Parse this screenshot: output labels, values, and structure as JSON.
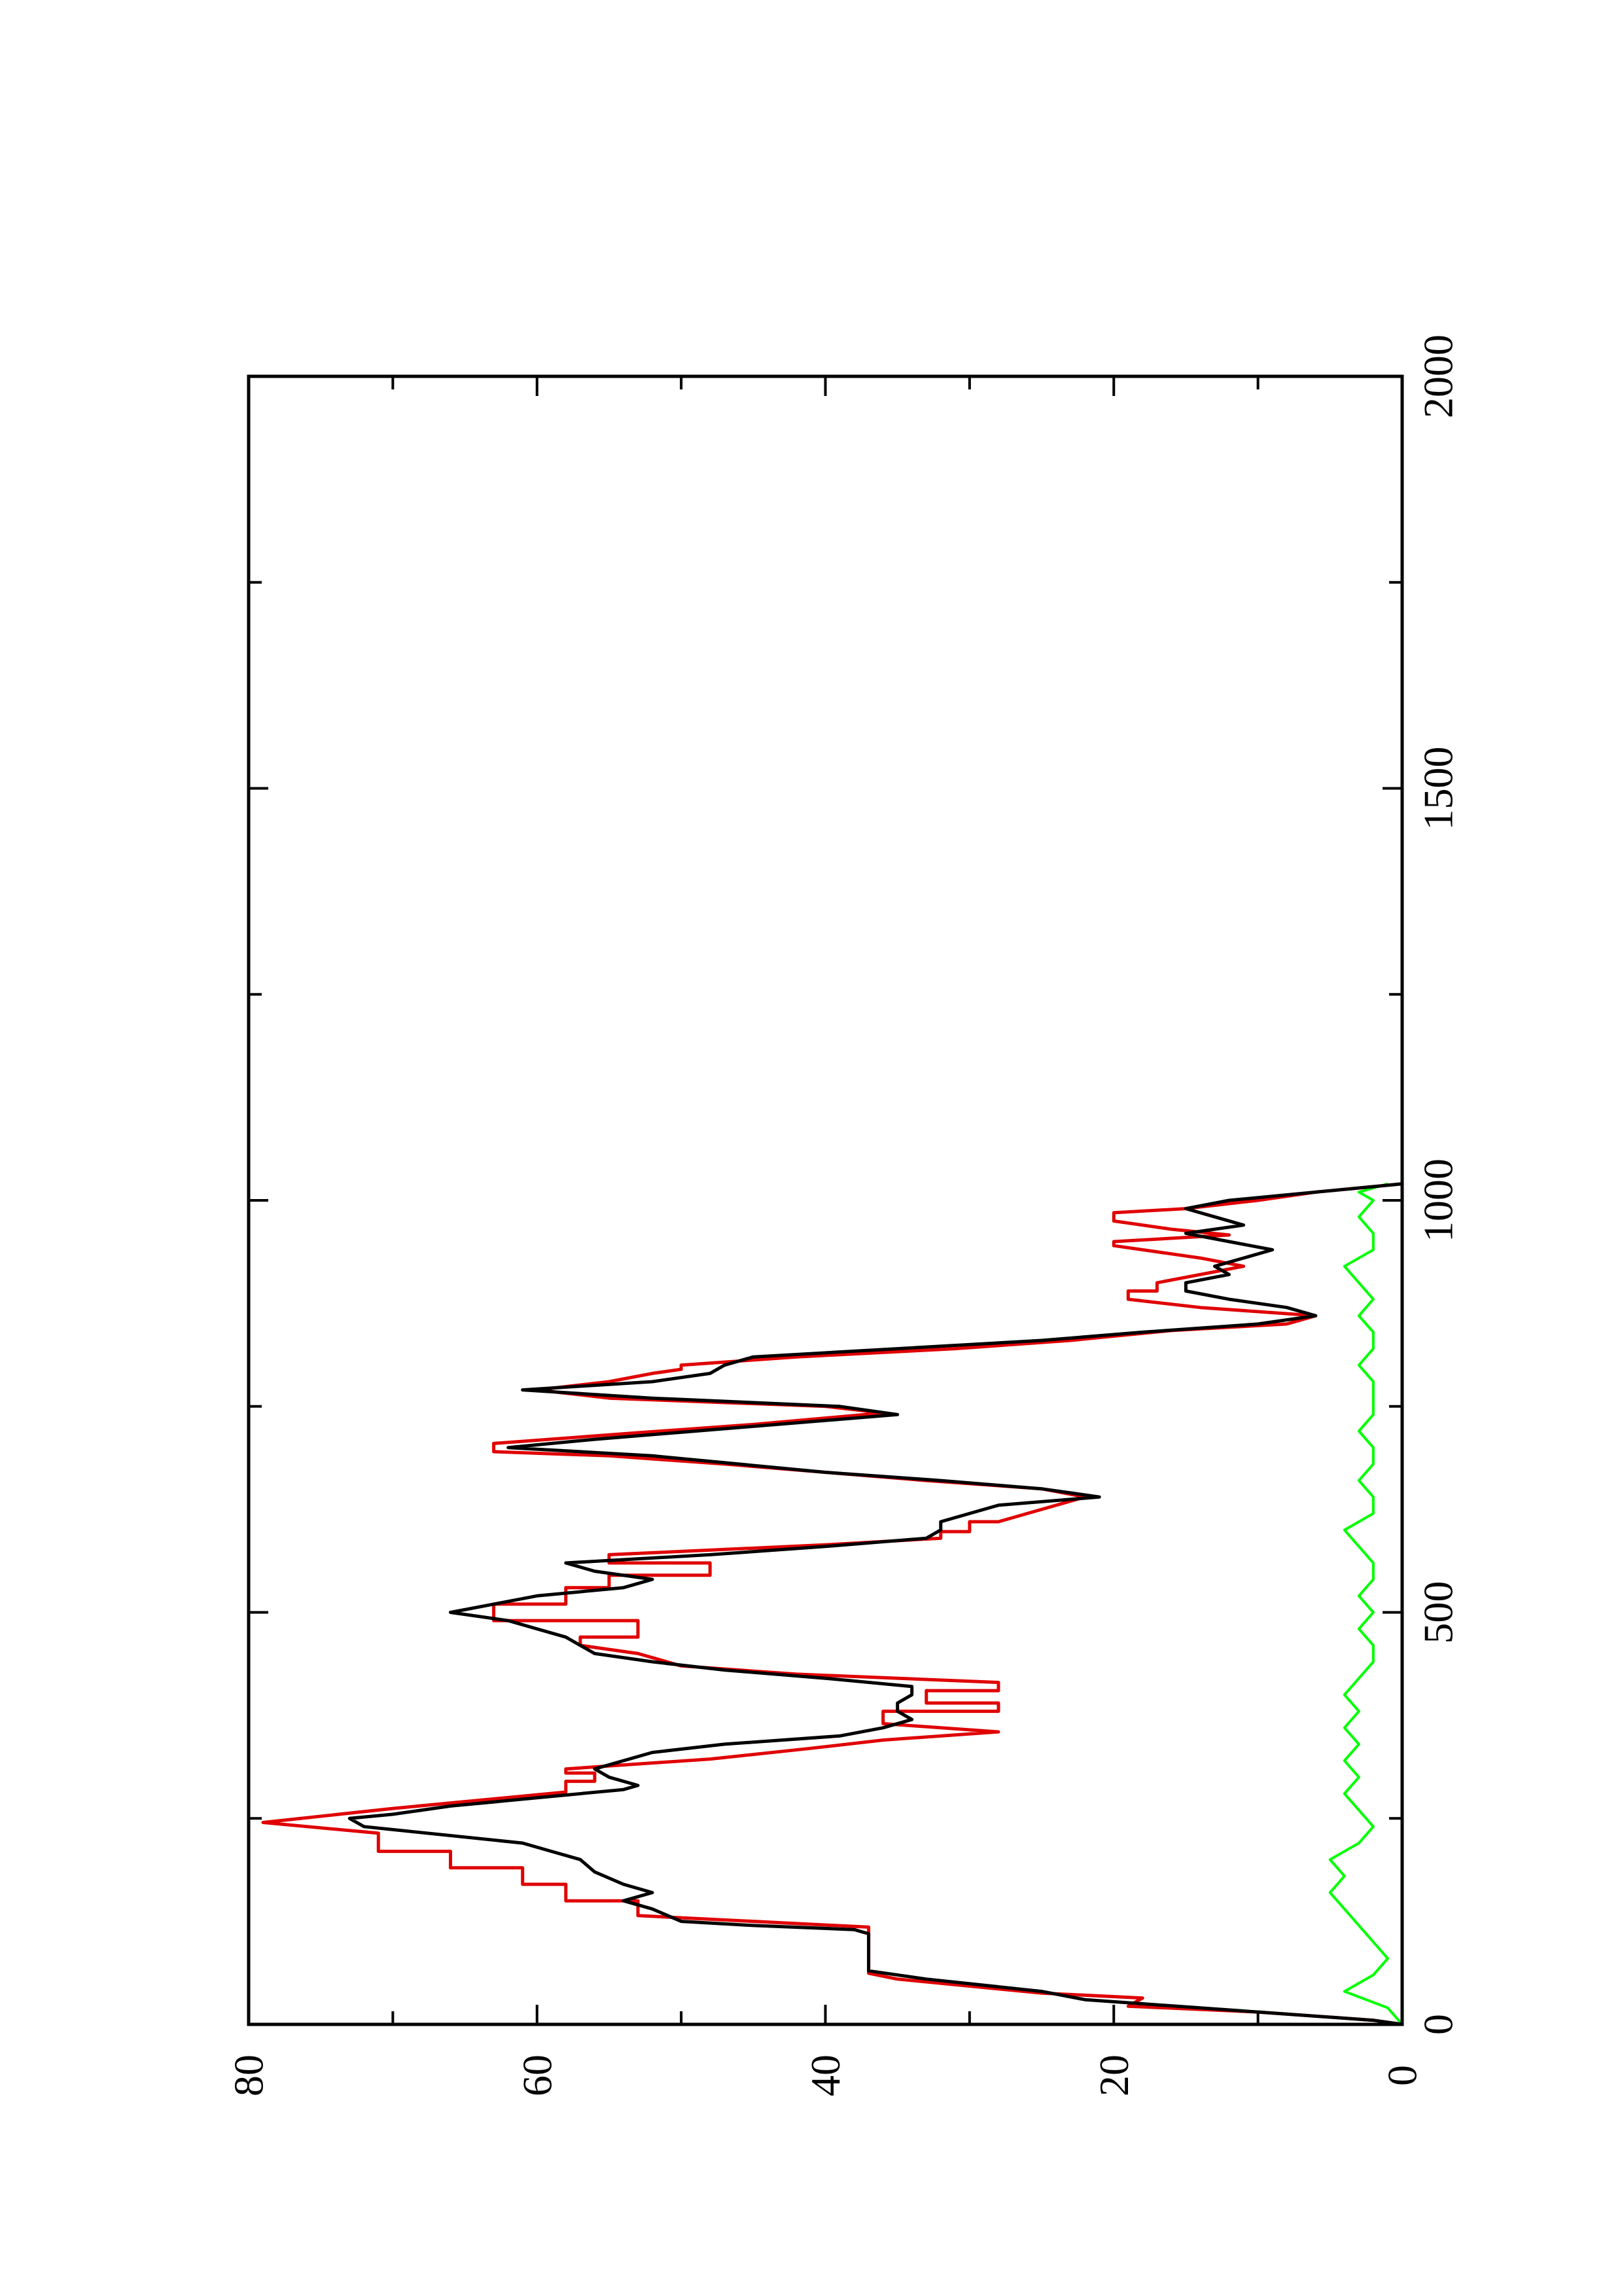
{
  "chart_data": {
    "type": "line",
    "title": "",
    "xlabel": "",
    "ylabel": "",
    "xlim": [
      0,
      2000
    ],
    "ylim": [
      0,
      80
    ],
    "orientation": "rotated 90 degrees counter-clockwise on the page",
    "grid": false,
    "legend": "none",
    "x_ticks": [
      "0",
      "500",
      "1000",
      "1500",
      "2000"
    ],
    "y_ticks": [
      "0",
      "20",
      "40",
      "60",
      "80"
    ],
    "series": [
      {
        "color": "#000000",
        "style": "line",
        "points": [
          [
            0,
            0
          ],
          [
            5,
            2
          ],
          [
            15,
            10
          ],
          [
            25,
            18
          ],
          [
            30,
            22
          ],
          [
            40,
            25
          ],
          [
            55,
            33
          ],
          [
            65,
            37
          ],
          [
            110,
            37
          ],
          [
            115,
            38
          ],
          [
            120,
            45
          ],
          [
            125,
            50
          ],
          [
            140,
            52
          ],
          [
            150,
            54
          ],
          [
            160,
            52
          ],
          [
            170,
            54
          ],
          [
            185,
            56
          ],
          [
            200,
            57
          ],
          [
            210,
            59
          ],
          [
            220,
            61
          ],
          [
            240,
            72
          ],
          [
            250,
            73
          ],
          [
            255,
            70
          ],
          [
            265,
            66
          ],
          [
            275,
            60
          ],
          [
            285,
            54
          ],
          [
            290,
            53
          ],
          [
            300,
            55
          ],
          [
            310,
            56
          ],
          [
            330,
            52
          ],
          [
            340,
            47
          ],
          [
            350,
            39
          ],
          [
            360,
            36
          ],
          [
            370,
            34
          ],
          [
            380,
            35
          ],
          [
            390,
            35
          ],
          [
            400,
            34
          ],
          [
            410,
            34
          ],
          [
            420,
            40
          ],
          [
            430,
            47
          ],
          [
            440,
            52
          ],
          [
            450,
            56
          ],
          [
            460,
            57
          ],
          [
            470,
            58
          ],
          [
            490,
            62
          ],
          [
            500,
            66
          ],
          [
            510,
            63
          ],
          [
            520,
            60
          ],
          [
            530,
            54
          ],
          [
            540,
            52
          ],
          [
            550,
            56
          ],
          [
            560,
            58
          ],
          [
            570,
            48
          ],
          [
            580,
            40
          ],
          [
            590,
            33
          ],
          [
            600,
            32
          ],
          [
            610,
            32
          ],
          [
            630,
            28
          ],
          [
            640,
            21
          ],
          [
            650,
            25
          ],
          [
            660,
            32
          ],
          [
            670,
            40
          ],
          [
            680,
            46
          ],
          [
            690,
            52
          ],
          [
            700,
            62
          ],
          [
            710,
            56
          ],
          [
            720,
            49
          ],
          [
            730,
            42
          ],
          [
            740,
            35
          ],
          [
            750,
            39
          ],
          [
            760,
            52
          ],
          [
            770,
            61
          ],
          [
            780,
            52
          ],
          [
            790,
            48
          ],
          [
            800,
            47
          ],
          [
            810,
            45
          ],
          [
            820,
            35
          ],
          [
            830,
            25
          ],
          [
            840,
            18
          ],
          [
            850,
            10
          ],
          [
            860,
            6
          ],
          [
            870,
            8
          ],
          [
            880,
            12
          ],
          [
            890,
            15
          ],
          [
            900,
            15
          ],
          [
            910,
            12
          ],
          [
            920,
            13
          ],
          [
            930,
            11
          ],
          [
            940,
            9
          ],
          [
            950,
            12
          ],
          [
            960,
            15
          ],
          [
            970,
            11
          ],
          [
            980,
            13
          ],
          [
            990,
            15
          ],
          [
            1000,
            12
          ],
          [
            1010,
            6
          ],
          [
            1020,
            0
          ]
        ]
      },
      {
        "color": "#e00000",
        "style": "step",
        "points": [
          [
            0,
            0
          ],
          [
            5,
            2
          ],
          [
            15,
            10
          ],
          [
            22,
            19
          ],
          [
            32,
            18
          ],
          [
            38,
            25
          ],
          [
            55,
            35
          ],
          [
            62,
            37
          ],
          [
            118,
            37
          ],
          [
            132,
            53
          ],
          [
            150,
            53
          ],
          [
            150,
            58
          ],
          [
            170,
            58
          ],
          [
            170,
            61
          ],
          [
            190,
            61
          ],
          [
            190,
            66
          ],
          [
            210,
            66
          ],
          [
            210,
            71
          ],
          [
            232,
            71
          ],
          [
            245,
            79
          ],
          [
            262,
            70
          ],
          [
            282,
            58
          ],
          [
            295,
            58
          ],
          [
            295,
            56
          ],
          [
            305,
            56
          ],
          [
            305,
            58
          ],
          [
            310,
            58
          ],
          [
            322,
            48
          ],
          [
            335,
            41
          ],
          [
            345,
            36
          ],
          [
            355,
            28
          ],
          [
            365,
            36
          ],
          [
            380,
            36
          ],
          [
            380,
            28
          ],
          [
            390,
            28
          ],
          [
            390,
            33
          ],
          [
            405,
            33
          ],
          [
            405,
            28
          ],
          [
            415,
            28
          ],
          [
            425,
            42
          ],
          [
            435,
            50
          ],
          [
            450,
            53
          ],
          [
            460,
            57
          ],
          [
            470,
            57
          ],
          [
            470,
            53
          ],
          [
            490,
            53
          ],
          [
            490,
            63
          ],
          [
            510,
            63
          ],
          [
            510,
            58
          ],
          [
            530,
            58
          ],
          [
            530,
            55
          ],
          [
            545,
            55
          ],
          [
            545,
            48
          ],
          [
            560,
            48
          ],
          [
            560,
            55
          ],
          [
            570,
            55
          ],
          [
            582,
            40
          ],
          [
            590,
            32
          ],
          [
            598,
            32
          ],
          [
            598,
            30
          ],
          [
            610,
            30
          ],
          [
            610,
            28
          ],
          [
            625,
            25
          ],
          [
            640,
            22
          ],
          [
            650,
            25
          ],
          [
            660,
            33
          ],
          [
            670,
            40
          ],
          [
            680,
            47
          ],
          [
            690,
            55
          ],
          [
            695,
            63
          ],
          [
            705,
            63
          ],
          [
            718,
            53
          ],
          [
            728,
            45
          ],
          [
            742,
            36
          ],
          [
            750,
            40
          ],
          [
            760,
            55
          ],
          [
            770,
            60
          ],
          [
            780,
            55
          ],
          [
            790,
            52
          ],
          [
            795,
            50
          ],
          [
            800,
            50
          ],
          [
            810,
            42
          ],
          [
            820,
            31
          ],
          [
            830,
            23
          ],
          [
            842,
            16
          ],
          [
            850,
            8
          ],
          [
            860,
            6
          ],
          [
            870,
            14
          ],
          [
            880,
            19
          ],
          [
            890,
            19
          ],
          [
            890,
            17
          ],
          [
            900,
            17
          ],
          [
            910,
            14
          ],
          [
            920,
            11
          ],
          [
            930,
            14
          ],
          [
            945,
            20
          ],
          [
            950,
            20
          ],
          [
            958,
            12
          ],
          [
            965,
            16
          ],
          [
            975,
            20
          ],
          [
            985,
            20
          ],
          [
            990,
            15
          ],
          [
            1000,
            10
          ],
          [
            1010,
            6
          ],
          [
            1020,
            0
          ]
        ]
      },
      {
        "color": "#00ff00",
        "style": "noise",
        "note": "fluctuating band between 0 and about 5 from x = 0 to 1020, densest near x = 40 and 140-220",
        "points": [
          [
            0,
            0
          ],
          [
            20,
            1
          ],
          [
            40,
            4
          ],
          [
            60,
            2
          ],
          [
            80,
            1
          ],
          [
            100,
            2
          ],
          [
            120,
            3
          ],
          [
            140,
            4
          ],
          [
            160,
            5
          ],
          [
            180,
            4
          ],
          [
            200,
            5
          ],
          [
            220,
            3
          ],
          [
            240,
            2
          ],
          [
            260,
            3
          ],
          [
            280,
            4
          ],
          [
            300,
            3
          ],
          [
            320,
            4
          ],
          [
            340,
            3
          ],
          [
            360,
            4
          ],
          [
            380,
            3
          ],
          [
            400,
            4
          ],
          [
            420,
            3
          ],
          [
            440,
            2
          ],
          [
            460,
            2
          ],
          [
            480,
            3
          ],
          [
            500,
            2
          ],
          [
            520,
            3
          ],
          [
            540,
            2
          ],
          [
            560,
            2
          ],
          [
            580,
            3
          ],
          [
            600,
            4
          ],
          [
            620,
            2
          ],
          [
            640,
            2
          ],
          [
            660,
            3
          ],
          [
            680,
            2
          ],
          [
            700,
            2
          ],
          [
            720,
            3
          ],
          [
            740,
            2
          ],
          [
            760,
            2
          ],
          [
            780,
            2
          ],
          [
            800,
            3
          ],
          [
            820,
            2
          ],
          [
            840,
            2
          ],
          [
            860,
            3
          ],
          [
            880,
            2
          ],
          [
            900,
            3
          ],
          [
            920,
            4
          ],
          [
            940,
            2
          ],
          [
            960,
            2
          ],
          [
            980,
            3
          ],
          [
            1000,
            2
          ],
          [
            1010,
            3
          ],
          [
            1020,
            1
          ]
        ]
      }
    ]
  }
}
